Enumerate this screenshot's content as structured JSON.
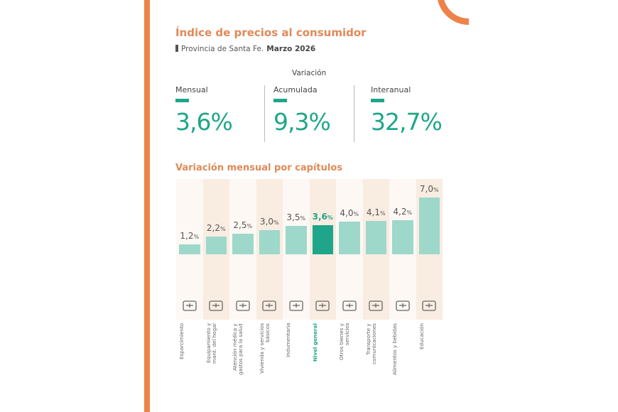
{
  "header": {
    "title": "Índice de precios al consumidor",
    "subtitle": "Provincia de Santa Fe.",
    "period": "Marzo 2026"
  },
  "variation": {
    "heading": "Variación",
    "items": [
      {
        "label": "Mensual",
        "value": "3,6%"
      },
      {
        "label": "Acumulada",
        "value": "9,3%"
      },
      {
        "label": "Interanual",
        "value": "32,7%"
      }
    ]
  },
  "colors": {
    "accent": "#ee834a",
    "title": "#e08a57",
    "bar": "#9dd8cb",
    "highlight": "#1fa68a",
    "col_light": "#fdf8f4",
    "col_dark": "#f9ece1"
  },
  "chart_data": {
    "type": "bar",
    "title": "Variación mensual por capítulos",
    "categories": [
      "Esparcimiento",
      "Equipamiento y mant. del hogar",
      "Atención médica y gastos para la salud",
      "Vivienda y servicios básicos",
      "Indumentaria",
      "Nivel general",
      "Otros bienes y servicios",
      "Transporte y comunicaciones",
      "Alimentos y bebidas",
      "Educación"
    ],
    "values": [
      1.2,
      2.2,
      2.5,
      3.0,
      3.5,
      3.6,
      4.0,
      4.1,
      4.2,
      7.0
    ],
    "labels": [
      "1,2",
      "2,2",
      "2,5",
      "3,0",
      "3,5",
      "3,6",
      "4,0",
      "4,1",
      "4,2",
      "7,0"
    ],
    "unit": "%",
    "highlight": "Nivel general",
    "icons": [
      "ticket-icon",
      "house-wrench-icon",
      "hands-medical-cross-icon",
      "house-dollar-icon",
      "clothing-icon",
      "chart-dollar-magnifier-icon",
      "hand-coin-icon",
      "route-icon",
      "grocery-box-icon",
      "graduation-books-icon"
    ],
    "ylim": [
      0,
      7.0
    ]
  }
}
